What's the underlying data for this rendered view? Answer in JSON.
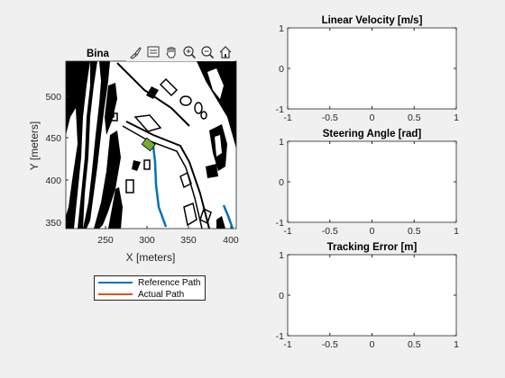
{
  "toolbar": {
    "buttons": [
      "brush-icon",
      "datatip-icon",
      "pan-icon",
      "zoom-in-icon",
      "zoom-out-icon",
      "home-icon"
    ]
  },
  "map_axes": {
    "title": "Bina",
    "xlabel": "X [meters]",
    "ylabel": "Y [meters]",
    "xticks": [
      "250",
      "300",
      "350",
      "400"
    ],
    "yticks": [
      "500",
      "450",
      "400",
      "350"
    ]
  },
  "legend": {
    "items": [
      {
        "label": "Reference Path",
        "color": "#0072BD"
      },
      {
        "label": "Actual Path",
        "color": "#D95319"
      }
    ]
  },
  "plots": {
    "velocity": {
      "title": "Linear Velocity [m/s]"
    },
    "steering": {
      "title": "Steering Angle [rad]"
    },
    "error": {
      "title": "Tracking Error [m]"
    }
  },
  "chart_data": [
    {
      "type": "line",
      "title": "Linear Velocity [m/s]",
      "xlim": [
        -1,
        1
      ],
      "ylim": [
        -1,
        1
      ],
      "xticks": [
        "-1",
        "-0.5",
        "0",
        "0.5",
        "1"
      ],
      "yticks": [
        "1",
        "0",
        "-1"
      ],
      "series": []
    },
    {
      "type": "line",
      "title": "Steering Angle [rad]",
      "xlim": [
        -1,
        1
      ],
      "ylim": [
        -1,
        1
      ],
      "xticks": [
        "-1",
        "-0.5",
        "0",
        "0.5",
        "1"
      ],
      "yticks": [
        "1",
        "0",
        "-1"
      ],
      "series": []
    },
    {
      "type": "line",
      "title": "Tracking Error [m]",
      "xlim": [
        -1,
        1
      ],
      "ylim": [
        -1,
        1
      ],
      "xticks": [
        "-1",
        "-0.5",
        "0",
        "0.5",
        "1"
      ],
      "yticks": [
        "1",
        "0",
        "-1"
      ],
      "series": []
    }
  ]
}
